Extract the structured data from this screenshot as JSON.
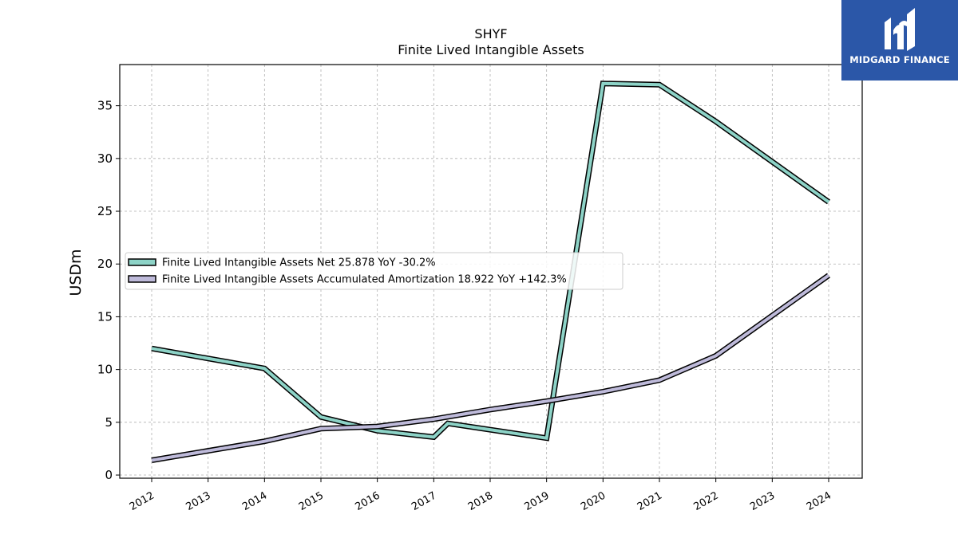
{
  "chart_data": {
    "type": "line",
    "title": "SHYF",
    "subtitle": "Finite Lived Intangible Assets",
    "xlabel": "",
    "ylabel": "USDm",
    "ylim": [
      -0.3,
      38.9
    ],
    "yticks": [
      0,
      5,
      10,
      15,
      20,
      25,
      30,
      35
    ],
    "xtick_labels": [
      "2012",
      "2013",
      "2014",
      "2015",
      "2016",
      "2017",
      "2018",
      "2019",
      "2020",
      "2021",
      "2022",
      "2023",
      "2024"
    ],
    "grid": true,
    "legend_position": "center-left",
    "series": [
      {
        "name": "Finite Lived Intangible Assets Net  25.878 YoY -30.2%",
        "color": "#8dd3c7",
        "points": [
          [
            2012.0,
            12.0
          ],
          [
            2014.0,
            10.1
          ],
          [
            2015.0,
            5.5
          ],
          [
            2016.0,
            4.2
          ],
          [
            2017.0,
            3.6
          ],
          [
            2017.25,
            4.9
          ],
          [
            2019.0,
            3.5
          ],
          [
            2020.0,
            37.1
          ],
          [
            2021.0,
            37.0
          ],
          [
            2022.0,
            33.5
          ],
          [
            2024.0,
            25.878
          ]
        ]
      },
      {
        "name": "Finite Lived Intangible Assets Accumulated Amortization  18.922 YoY +142.3%",
        "color": "#bebada",
        "points": [
          [
            2012.0,
            1.4
          ],
          [
            2014.0,
            3.2
          ],
          [
            2015.0,
            4.4
          ],
          [
            2016.0,
            4.6
          ],
          [
            2017.0,
            5.3
          ],
          [
            2018.0,
            6.2
          ],
          [
            2019.0,
            7.0
          ],
          [
            2020.0,
            7.9
          ],
          [
            2021.0,
            9.0
          ],
          [
            2022.0,
            11.3
          ],
          [
            2024.0,
            18.922
          ]
        ]
      }
    ]
  },
  "logo": {
    "text": "MIDGARD FINANCE",
    "background": "#2b57a8"
  }
}
